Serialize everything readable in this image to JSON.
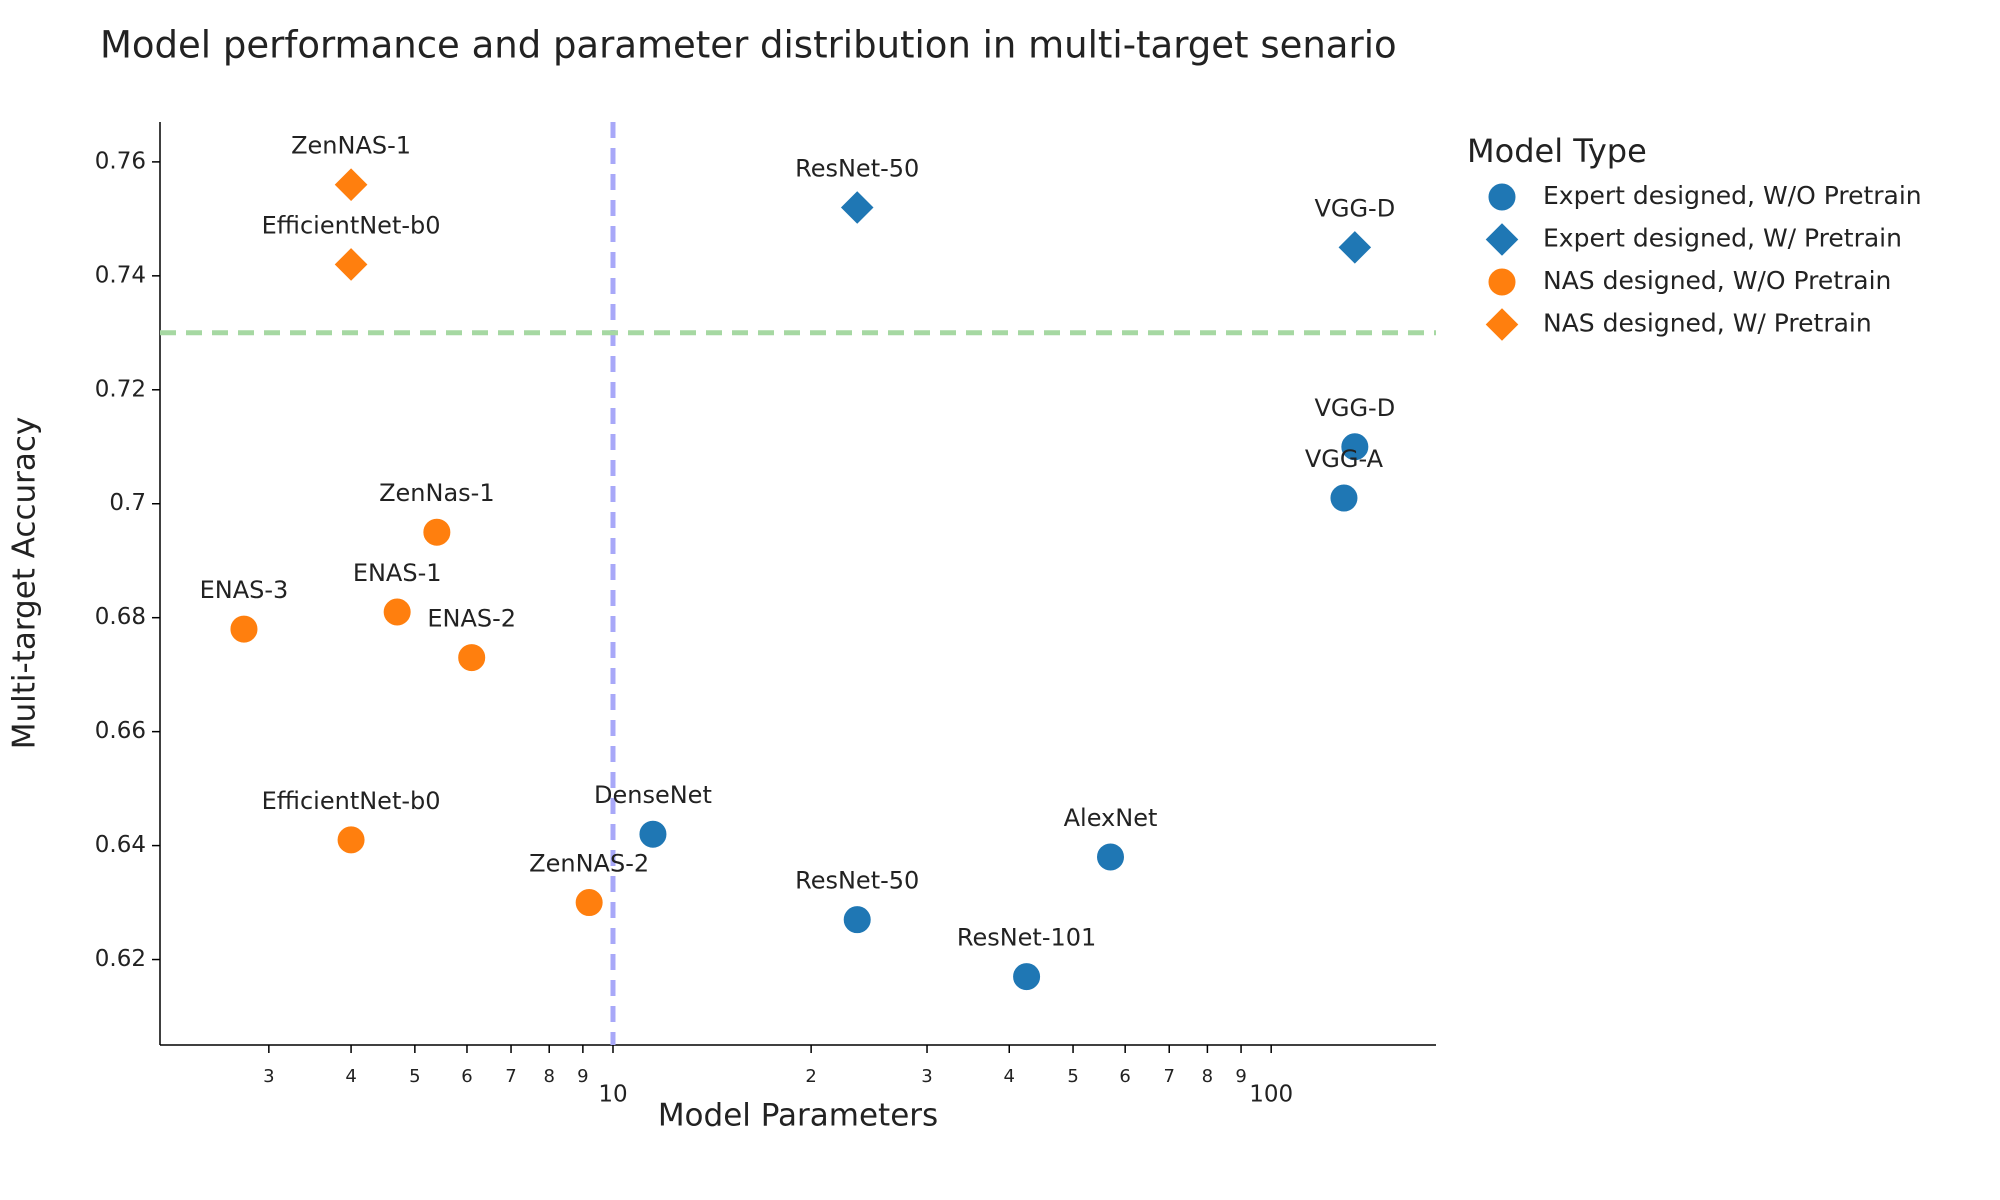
{
  "chart_data": {
    "type": "scatter",
    "title": "Model performance and parameter distribution in multi-target senario",
    "x_label": "Model Parameters",
    "y_label": "Multi-target Accuracy",
    "x_log": true,
    "xlim": [
      2.05,
      178
    ],
    "ylim": [
      0.605,
      0.767
    ],
    "xticks": [
      3,
      4,
      5,
      6,
      7,
      8,
      9,
      10,
      {
        "value": 20,
        "label": "2"
      },
      {
        "value": 30,
        "label": "3"
      },
      {
        "value": 40,
        "label": "4"
      },
      {
        "value": 50,
        "label": "5"
      },
      {
        "value": 60,
        "label": "6"
      },
      {
        "value": 70,
        "label": "7"
      },
      {
        "value": 80,
        "label": "8"
      },
      {
        "value": 90,
        "label": "9"
      },
      100
    ],
    "yticks": [
      0.62,
      0.64,
      0.66,
      0.68,
      0.7,
      0.72,
      0.74,
      0.76
    ],
    "grid": false,
    "legend_title": "Model Type",
    "legend_position": "right",
    "reference_lines": [
      {
        "axis": "x",
        "value": 10,
        "color": "#a8a8f8"
      },
      {
        "axis": "y",
        "value": 0.73,
        "color": "#a6d8a2"
      }
    ],
    "series": [
      {
        "name": "Expert designed, W/O Pretrain",
        "color": "#1f77b4",
        "marker": "circle",
        "x": [
          134,
          129,
          11.5,
          23.5,
          57,
          42.5
        ],
        "y": [
          0.71,
          0.701,
          0.642,
          0.627,
          0.638,
          0.617
        ],
        "labels": [
          "VGG-D",
          "VGG-A",
          "DenseNet",
          "ResNet-50",
          "AlexNet",
          "ResNet-101"
        ]
      },
      {
        "name": "Expert designed, W/ Pretrain",
        "color": "#1f77b4",
        "marker": "diamond",
        "x": [
          23.5,
          134
        ],
        "y": [
          0.752,
          0.745
        ],
        "labels": [
          "ResNet-50",
          "VGG-D"
        ]
      },
      {
        "name": "NAS designed, W/O Pretrain",
        "color": "#ff7f0e",
        "marker": "circle",
        "x": [
          5.4,
          2.75,
          4.7,
          6.1,
          4.0,
          9.2
        ],
        "y": [
          0.695,
          0.678,
          0.681,
          0.673,
          0.641,
          0.63
        ],
        "labels": [
          "ZenNas-1",
          "ENAS-3",
          "ENAS-1",
          "ENAS-2",
          "EfficientNet-b0",
          "ZenNAS-2"
        ]
      },
      {
        "name": "NAS designed, W/ Pretrain",
        "color": "#ff7f0e",
        "marker": "diamond",
        "x": [
          4.0,
          4.0
        ],
        "y": [
          0.756,
          0.742
        ],
        "labels": [
          "ZenNAS-1",
          "EfficientNet-b0"
        ]
      }
    ]
  }
}
